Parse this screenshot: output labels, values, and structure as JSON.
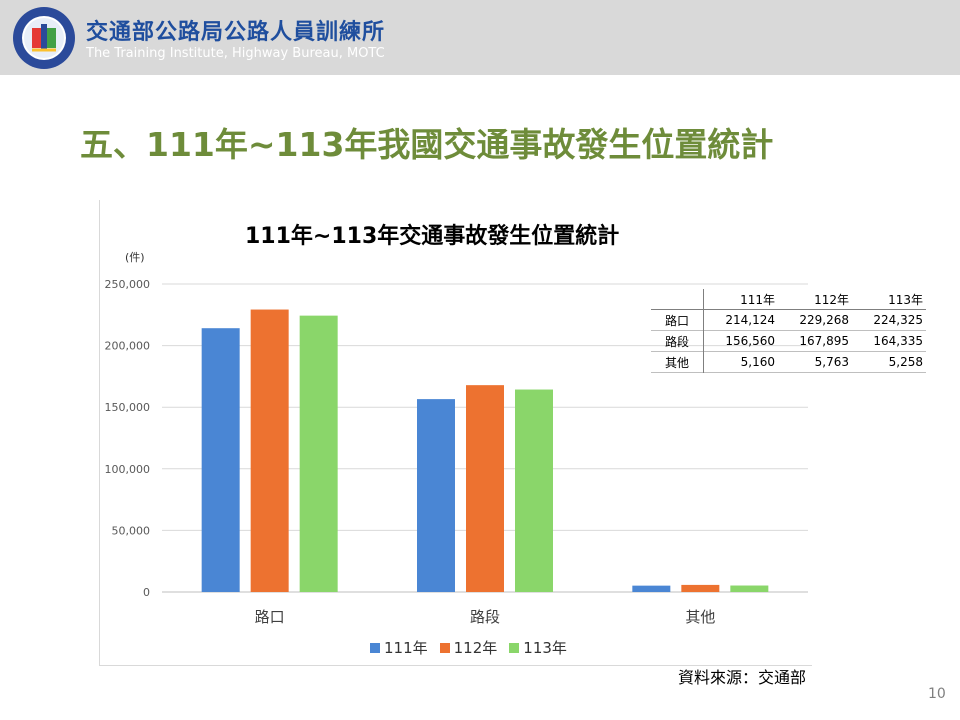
{
  "header": {
    "org_name": "交通部公路局公路人員訓練所",
    "org_sub": "The Training Institute, Highway Bureau, MOTC"
  },
  "slide": {
    "title": "五、111年~113年我國交通事故發生位置統計",
    "source": "資料來源：交通部",
    "page_number": "10"
  },
  "colors": {
    "series_111": "#4a86d4",
    "series_112": "#ed7230",
    "series_113": "#8ad66a",
    "title_green": "#6e8c3a",
    "org_blue": "#1f4e9e"
  },
  "chart_data": {
    "type": "bar",
    "title": "111年~113年交通事故發生位置統計",
    "unit_label": "(件)",
    "categories": [
      "路口",
      "路段",
      "其他"
    ],
    "series": [
      {
        "name": "111年",
        "values": [
          214124,
          156560,
          5160
        ]
      },
      {
        "name": "112年",
        "values": [
          229268,
          167895,
          5763
        ]
      },
      {
        "name": "113年",
        "values": [
          224325,
          164335,
          5258
        ]
      }
    ],
    "ylim": [
      0,
      250000
    ],
    "yticks": [
      "0",
      "50,000",
      "100,000",
      "150,000",
      "200,000",
      "250,000"
    ],
    "grid": true,
    "legend": "bottom"
  },
  "table": {
    "headers": [
      "111年",
      "112年",
      "113年"
    ],
    "rows": [
      {
        "label": "路口",
        "values": [
          "214,124",
          "229,268",
          "224,325"
        ]
      },
      {
        "label": "路段",
        "values": [
          "156,560",
          "167,895",
          "164,335"
        ]
      },
      {
        "label": "其他",
        "values": [
          "5,160",
          "5,763",
          "5,258"
        ]
      }
    ]
  }
}
